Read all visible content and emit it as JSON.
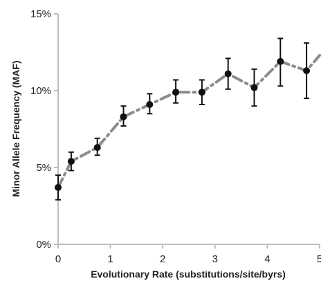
{
  "chart_data": {
    "type": "line",
    "title": "",
    "xlabel": "Evolutionary Rate (substitutions/site/byrs)",
    "ylabel": "Minor Allele Frequency (MAF)",
    "xlim": [
      0,
      5
    ],
    "ylim": [
      0,
      15
    ],
    "x_ticks": [
      0,
      1,
      2,
      3,
      4,
      5
    ],
    "x_tick_labels": [
      "0",
      "1",
      "2",
      "3",
      "4",
      "5"
    ],
    "y_ticks": [
      0,
      5,
      10,
      15
    ],
    "y_tick_labels": [
      "0%",
      "5%",
      "10%",
      "15%"
    ],
    "grid": false,
    "legend": "none",
    "series": [
      {
        "x": [
          0,
          0.25,
          0.75,
          1.25,
          1.75,
          2.25,
          2.75,
          3.25,
          3.75,
          4.25,
          4.75
        ],
        "y": [
          3.7,
          5.4,
          6.3,
          8.3,
          9.1,
          9.9,
          9.9,
          11.1,
          10.2,
          11.9,
          11.3
        ],
        "error_low": [
          2.9,
          4.8,
          5.8,
          7.7,
          8.5,
          9.2,
          9.1,
          10.1,
          9.0,
          10.3,
          9.5
        ],
        "error_high": [
          4.5,
          6.0,
          6.9,
          9.0,
          9.8,
          10.7,
          10.7,
          12.1,
          11.4,
          13.4,
          13.1
        ]
      }
    ],
    "trend_extension": {
      "x": 5.0,
      "y": 12.3
    },
    "colors": {
      "line": "#8c8c8c",
      "marker": "#111111",
      "error_bar": "#111111",
      "axis": "#bdbdbd",
      "text": "#222222"
    }
  }
}
